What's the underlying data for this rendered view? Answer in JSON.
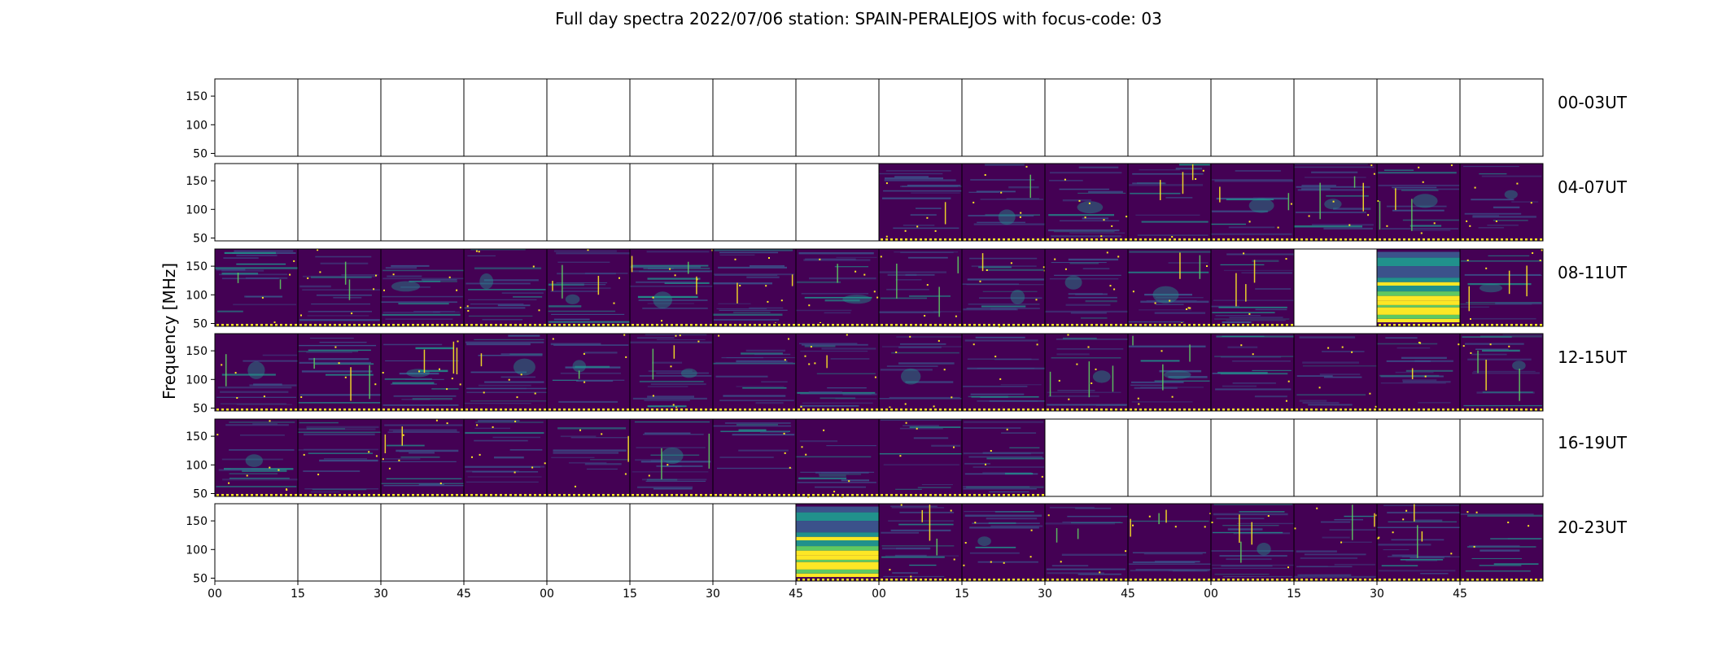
{
  "chart_data": {
    "type": "heatmap",
    "title": "Full day spectra 2022/07/06 station: SPAIN-PERALEJOS with focus-code: 03",
    "ylabel": "Frequency [MHz]",
    "xlabel": "",
    "ylim": [
      45,
      180
    ],
    "y_ticks": [
      "150",
      "100",
      "50"
    ],
    "y_tick_values": [
      150,
      100,
      50
    ],
    "x_tick_labels": [
      "00",
      "15",
      "30",
      "45",
      "00",
      "15",
      "30",
      "45",
      "00",
      "15",
      "30",
      "45",
      "00",
      "15",
      "30",
      "45"
    ],
    "rows": [
      {
        "label": "00-03UT",
        "panels": [
          "empty",
          "empty",
          "empty",
          "empty",
          "empty",
          "empty",
          "empty",
          "empty",
          "empty",
          "empty",
          "empty",
          "empty",
          "empty",
          "empty",
          "empty",
          "empty"
        ]
      },
      {
        "label": "04-07UT",
        "panels": [
          "empty",
          "empty",
          "empty",
          "empty",
          "empty",
          "empty",
          "empty",
          "empty",
          "data",
          "data",
          "data",
          "data",
          "data",
          "data",
          "data",
          "data"
        ]
      },
      {
        "label": "08-11UT",
        "panels": [
          "data",
          "data",
          "data",
          "data",
          "data",
          "data",
          "data",
          "data",
          "data",
          "data",
          "data",
          "data",
          "data",
          "empty",
          "burst",
          "data"
        ]
      },
      {
        "label": "12-15UT",
        "panels": [
          "data",
          "data",
          "data",
          "data",
          "data",
          "data",
          "data",
          "data",
          "data",
          "data",
          "data",
          "data",
          "data",
          "data",
          "data",
          "data"
        ]
      },
      {
        "label": "16-19UT",
        "panels": [
          "data",
          "data",
          "data",
          "data",
          "data",
          "data",
          "data",
          "data",
          "data",
          "data",
          "empty",
          "empty",
          "empty",
          "empty",
          "empty",
          "empty"
        ]
      },
      {
        "label": "20-23UT",
        "panels": [
          "empty",
          "empty",
          "empty",
          "empty",
          "empty",
          "empty",
          "empty",
          "burst",
          "data",
          "data",
          "data",
          "data",
          "data",
          "data",
          "data",
          "data"
        ]
      }
    ],
    "colors": {
      "background": "#440154",
      "mid": "#3b528b",
      "teal": "#21918c",
      "green": "#5ec962",
      "yellow": "#fde725"
    },
    "colormap": "viridis",
    "grid": false
  }
}
